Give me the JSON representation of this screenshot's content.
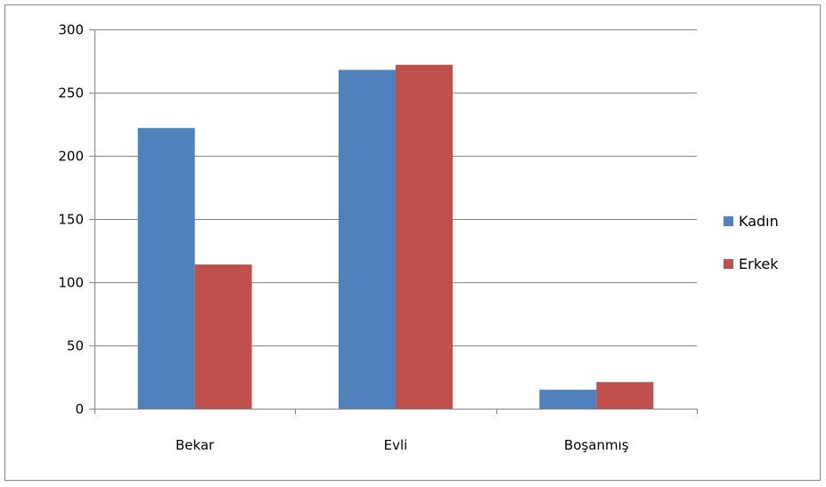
{
  "chart_data": {
    "type": "bar",
    "categories": [
      "Bekar",
      "Evli",
      "Boşanmış"
    ],
    "series": [
      {
        "name": "Kadın",
        "color": "#4F81BD",
        "values": [
          222,
          268,
          15
        ]
      },
      {
        "name": "Erkek",
        "color": "#C0504D",
        "values": [
          114,
          272,
          21
        ]
      }
    ],
    "y_ticks": [
      0,
      50,
      100,
      150,
      200,
      250,
      300
    ],
    "ylim": [
      0,
      300
    ],
    "grid": true,
    "legend_position": "right"
  }
}
